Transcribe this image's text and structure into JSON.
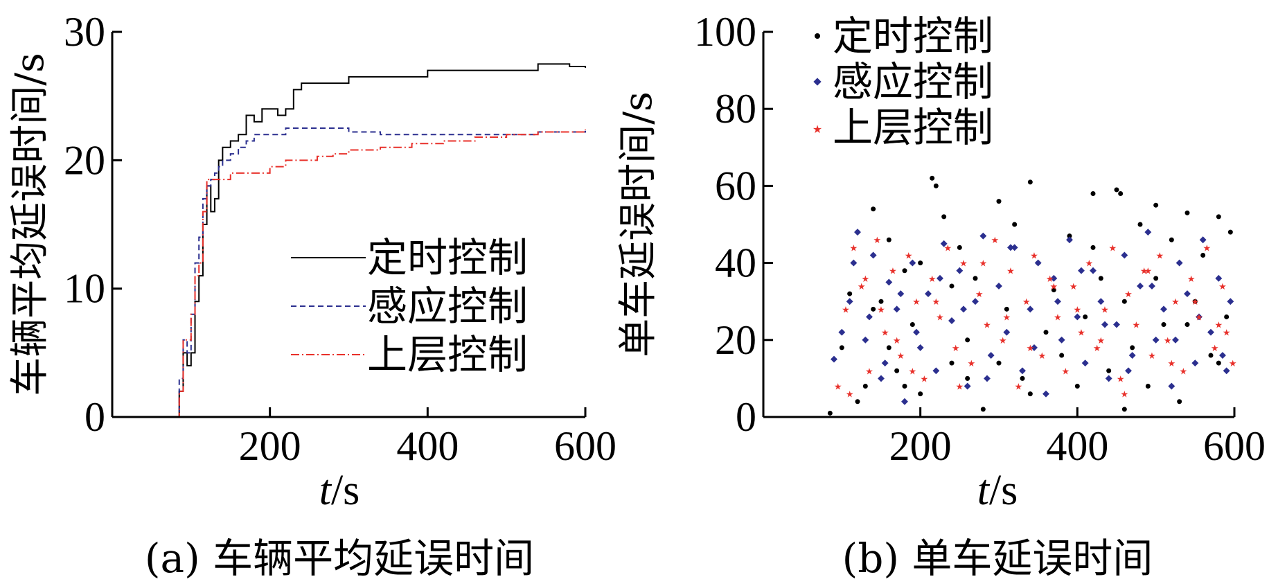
{
  "colors": {
    "timed": "#000000",
    "adaptive": "#2b2f8f",
    "upper": "#e8302a"
  },
  "chart_data": [
    {
      "type": "line",
      "caption": "(a) 车辆平均延误时间",
      "ylabel": "车辆平均延误时间/s",
      "xlabel_italic": "t",
      "xlabel_unit": "/s",
      "xlim": [
        0,
        600
      ],
      "ylim": [
        0,
        30
      ],
      "xticks": [
        "200",
        "400",
        "600"
      ],
      "yticks": [
        "0",
        "10",
        "20",
        "30"
      ],
      "legend_position": "center-right",
      "series": [
        {
          "name": "定时控制",
          "style": "solid",
          "color_key": "timed",
          "x": [
            80,
            85,
            90,
            95,
            100,
            105,
            110,
            115,
            120,
            125,
            130,
            135,
            140,
            145,
            150,
            160,
            170,
            180,
            190,
            200,
            210,
            220,
            230,
            240,
            260,
            280,
            300,
            320,
            340,
            360,
            380,
            400,
            420,
            440,
            460,
            480,
            500,
            520,
            540,
            560,
            580,
            600
          ],
          "y": [
            0,
            2,
            5,
            4,
            5,
            9,
            11,
            15,
            18,
            16,
            17,
            20,
            21,
            21,
            21.5,
            22,
            23.5,
            23,
            24,
            24,
            23.5,
            24,
            25.5,
            26,
            26,
            26,
            26.5,
            26.5,
            26.5,
            26.5,
            26.5,
            27,
            27,
            27,
            27,
            27,
            27,
            27,
            27.5,
            27.5,
            27.3,
            27.2
          ]
        },
        {
          "name": "感应控制",
          "style": "dashed",
          "color_key": "adaptive",
          "x": [
            80,
            85,
            90,
            95,
            100,
            105,
            110,
            115,
            120,
            125,
            130,
            135,
            140,
            150,
            160,
            170,
            180,
            200,
            220,
            240,
            260,
            280,
            300,
            340,
            380,
            420,
            460,
            500,
            540,
            600
          ],
          "y": [
            0,
            3,
            6,
            5,
            8,
            12,
            14,
            17,
            18,
            18.5,
            19,
            19.5,
            20,
            20.5,
            21,
            21.5,
            22,
            22,
            22.5,
            22.5,
            22.5,
            22.5,
            22.2,
            22,
            22,
            22,
            22,
            22,
            22.2,
            22.3
          ]
        },
        {
          "name": "上层控制",
          "style": "dashdot",
          "color_key": "upper",
          "x": [
            80,
            85,
            90,
            95,
            100,
            105,
            110,
            115,
            120,
            125,
            130,
            135,
            140,
            150,
            160,
            180,
            200,
            220,
            240,
            260,
            280,
            300,
            340,
            380,
            420,
            460,
            500,
            540,
            600
          ],
          "y": [
            0,
            2,
            6,
            6,
            8,
            11,
            12,
            16,
            18.5,
            18.5,
            18.5,
            18.5,
            18.5,
            19,
            19,
            19,
            19.5,
            20,
            20,
            20.3,
            20.5,
            20.8,
            21,
            21.3,
            21.5,
            21.8,
            22,
            22.2,
            22.4
          ]
        }
      ]
    },
    {
      "type": "scatter",
      "caption": "(b) 单车延误时间",
      "ylabel": "单车延误时间/s",
      "xlabel_italic": "t",
      "xlabel_unit": "/s",
      "xlim": [
        0,
        600
      ],
      "ylim": [
        0,
        100
      ],
      "xticks": [
        "200",
        "400",
        "600"
      ],
      "yticks": [
        "0",
        "20",
        "40",
        "60",
        "80",
        "100"
      ],
      "legend_position": "top-left",
      "series": [
        {
          "name": "定时控制",
          "marker": "dot",
          "color_key": "timed",
          "x": [
            85,
            100,
            110,
            120,
            130,
            140,
            150,
            160,
            170,
            180,
            190,
            200,
            215,
            220,
            230,
            240,
            250,
            260,
            270,
            280,
            300,
            310,
            320,
            330,
            340,
            350,
            360,
            370,
            380,
            390,
            400,
            410,
            420,
            430,
            440,
            450,
            455,
            460,
            470,
            480,
            490,
            500,
            510,
            520,
            530,
            540,
            550,
            560,
            570,
            580,
            590,
            595,
            120,
            140,
            160,
            180,
            200,
            240,
            260,
            300,
            340,
            380,
            420,
            460,
            500,
            540,
            580
          ],
          "y": [
            1,
            18,
            32,
            48,
            8,
            54,
            30,
            46,
            12,
            38,
            24,
            6,
            62,
            60,
            52,
            14,
            44,
            20,
            36,
            2,
            56,
            28,
            50,
            10,
            61,
            40,
            22,
            33,
            16,
            47,
            8,
            26,
            58,
            36,
            12,
            59,
            58,
            30,
            18,
            50,
            8,
            55,
            24,
            46,
            4,
            53,
            30,
            42,
            16,
            52,
            26,
            48,
            4,
            28,
            18,
            8,
            40,
            34,
            10,
            14,
            6,
            20,
            44,
            2,
            36,
            24,
            14
          ]
        },
        {
          "name": "感应控制",
          "marker": "diamond",
          "color_key": "adaptive",
          "x": [
            90,
            100,
            110,
            120,
            130,
            140,
            150,
            160,
            170,
            180,
            190,
            200,
            210,
            220,
            230,
            240,
            250,
            260,
            270,
            280,
            290,
            300,
            310,
            320,
            330,
            340,
            350,
            360,
            370,
            380,
            390,
            400,
            410,
            420,
            430,
            440,
            450,
            460,
            470,
            480,
            490,
            500,
            510,
            520,
            530,
            540,
            550,
            560,
            570,
            580,
            590,
            595,
            115,
            135,
            155,
            175,
            195,
            225,
            255,
            285,
            315,
            345,
            375,
            405,
            435,
            465,
            495,
            525,
            555,
            585
          ],
          "y": [
            15,
            22,
            30,
            48,
            20,
            42,
            10,
            35,
            28,
            4,
            40,
            18,
            32,
            12,
            45,
            25,
            38,
            8,
            30,
            47,
            16,
            34,
            22,
            44,
            12,
            28,
            40,
            6,
            36,
            20,
            46,
            26,
            14,
            38,
            30,
            10,
            24,
            42,
            16,
            34,
            48,
            20,
            28,
            8,
            40,
            32,
            14,
            46,
            22,
            36,
            12,
            30,
            40,
            26,
            14,
            32,
            22,
            36,
            28,
            10,
            44,
            18,
            30,
            38,
            24,
            12,
            34,
            20,
            26,
            16
          ]
        },
        {
          "name": "上层控制",
          "marker": "star",
          "color_key": "upper",
          "x": [
            95,
            105,
            115,
            125,
            135,
            145,
            155,
            165,
            175,
            185,
            195,
            205,
            215,
            225,
            235,
            245,
            255,
            265,
            275,
            285,
            295,
            305,
            315,
            325,
            335,
            345,
            355,
            365,
            375,
            385,
            395,
            405,
            415,
            425,
            435,
            445,
            455,
            465,
            475,
            485,
            495,
            505,
            515,
            525,
            535,
            545,
            555,
            565,
            575,
            585,
            590,
            598,
            110,
            130,
            150,
            170,
            190,
            220,
            250,
            280,
            310,
            340,
            370,
            400,
            430,
            460,
            490,
            520,
            550,
            580
          ],
          "y": [
            8,
            28,
            44,
            34,
            12,
            46,
            22,
            38,
            16,
            42,
            30,
            10,
            36,
            26,
            44,
            18,
            40,
            14,
            32,
            24,
            46,
            20,
            38,
            8,
            30,
            42,
            16,
            36,
            26,
            12,
            34,
            22,
            40,
            18,
            28,
            44,
            10,
            32,
            24,
            38,
            16,
            42,
            20,
            30,
            12,
            36,
            26,
            44,
            18,
            34,
            22,
            14,
            6,
            36,
            28,
            20,
            12,
            30,
            8,
            40,
            26,
            18,
            34,
            28,
            20,
            6,
            38,
            14,
            30,
            24
          ]
        }
      ]
    }
  ]
}
